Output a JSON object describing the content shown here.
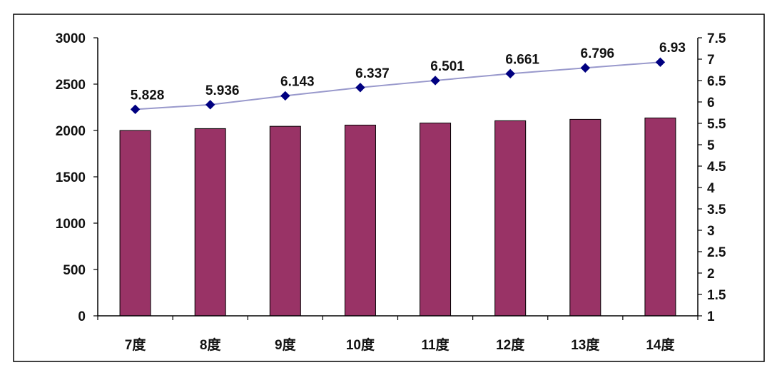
{
  "chart_data": {
    "type": "bar+line",
    "categories": [
      "7度",
      "8度",
      "9度",
      "10度",
      "11度",
      "12度",
      "13度",
      "14度"
    ],
    "series": [
      {
        "type": "bar",
        "axis": "left",
        "values": [
          2000,
          2020,
          2045,
          2058,
          2080,
          2105,
          2120,
          2135
        ]
      },
      {
        "type": "line",
        "axis": "right",
        "values": [
          5.828,
          5.936,
          6.143,
          6.337,
          6.501,
          6.661,
          6.796,
          6.93
        ],
        "data_labels": [
          "5.828",
          "5.936",
          "6.143",
          "6.337",
          "6.501",
          "6.661",
          "6.796",
          "6.93"
        ]
      }
    ],
    "y_left": {
      "lim": [
        0,
        3000
      ],
      "ticks": [
        "0",
        "500",
        "1000",
        "1500",
        "2000",
        "2500",
        "3000"
      ]
    },
    "y_right": {
      "lim": [
        1,
        7.5
      ],
      "ticks": [
        "1",
        "1.5",
        "2",
        "2.5",
        "3",
        "3.5",
        "4",
        "4.5",
        "5",
        "5.5",
        "6",
        "6.5",
        "7",
        "7.5"
      ]
    },
    "title": "",
    "xlabel": "",
    "ylabel": "",
    "grid": false,
    "legend": "none",
    "colors": {
      "bar": "#993366",
      "line": "#9999cc",
      "marker": "#000080",
      "axis": "#000000",
      "frame": "#000000"
    }
  }
}
